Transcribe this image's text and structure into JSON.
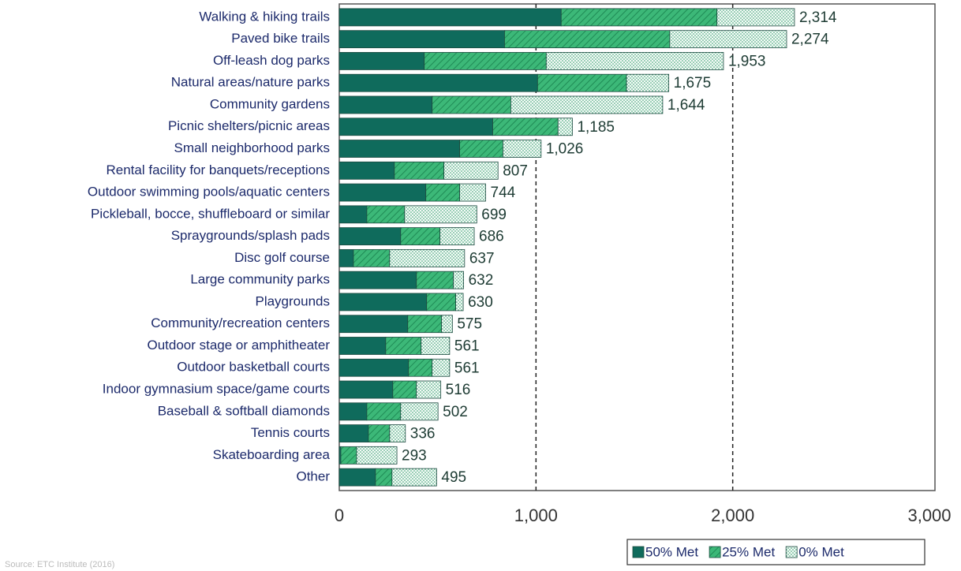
{
  "chart_data": {
    "type": "stacked-barh",
    "categories": [
      "Walking & hiking trails",
      "Paved bike trails",
      "Off-leash dog parks",
      "Natural areas/nature parks",
      "Community gardens",
      "Picnic shelters/picnic areas",
      "Small neighborhood parks",
      "Rental facility for banquets/receptions",
      "Outdoor swimming pools/aquatic centers",
      "Pickleball, bocce, shuffleboard or similar",
      "Spraygrounds/splash pads",
      "Disc golf course",
      "Large community parks",
      "Playgrounds",
      "Community/recreation centers",
      "Outdoor stage or amphitheater",
      "Outdoor basketball courts",
      "Indoor gymnasium space/game courts",
      "Baseball & softball diamonds",
      "Tennis courts",
      "Skateboarding area",
      "Other"
    ],
    "series": [
      {
        "name": "50% Met",
        "color": "#0f6b5c",
        "pattern": "solid",
        "values": [
          1128,
          840,
          432,
          1008,
          472,
          780,
          612,
          280,
          440,
          140,
          312,
          72,
          392,
          444,
          348,
          236,
          352,
          272,
          140,
          148,
          8,
          184
        ]
      },
      {
        "name": "25% Met",
        "color": "#3cb878",
        "pattern": "hatch",
        "values": [
          792,
          840,
          620,
          452,
          400,
          332,
          220,
          252,
          172,
          192,
          200,
          184,
          188,
          148,
          172,
          180,
          120,
          120,
          172,
          108,
          80,
          84
        ]
      },
      {
        "name": "0% Met",
        "color": "#2e9a6a",
        "pattern": "dots",
        "values": [
          394,
          594,
          901,
          215,
          772,
          73,
          194,
          275,
          132,
          367,
          174,
          381,
          52,
          38,
          55,
          145,
          89,
          124,
          190,
          80,
          205,
          227
        ]
      }
    ],
    "totals": [
      2314,
      2274,
      1953,
      1675,
      1644,
      1185,
      1026,
      807,
      744,
      699,
      686,
      637,
      632,
      630,
      575,
      561,
      561,
      516,
      502,
      336,
      293,
      495
    ],
    "total_labels": [
      "2,314",
      "2,274",
      "1,953",
      "1,675",
      "1,644",
      "1,185",
      "1,026",
      "807",
      "744",
      "699",
      "686",
      "637",
      "632",
      "630",
      "575",
      "561",
      "561",
      "516",
      "502",
      "336",
      "293",
      "495"
    ],
    "xlim": [
      0,
      3000
    ],
    "xticks": [
      0,
      {
        "value": 1000,
        "label": "1,000"
      },
      {
        "value": 2000,
        "label": "2,000"
      },
      {
        "value": 3000,
        "label": "3,000"
      }
    ],
    "grid": true,
    "legend": "bottom-right",
    "source": "Source: ETC Institute (2016)"
  }
}
